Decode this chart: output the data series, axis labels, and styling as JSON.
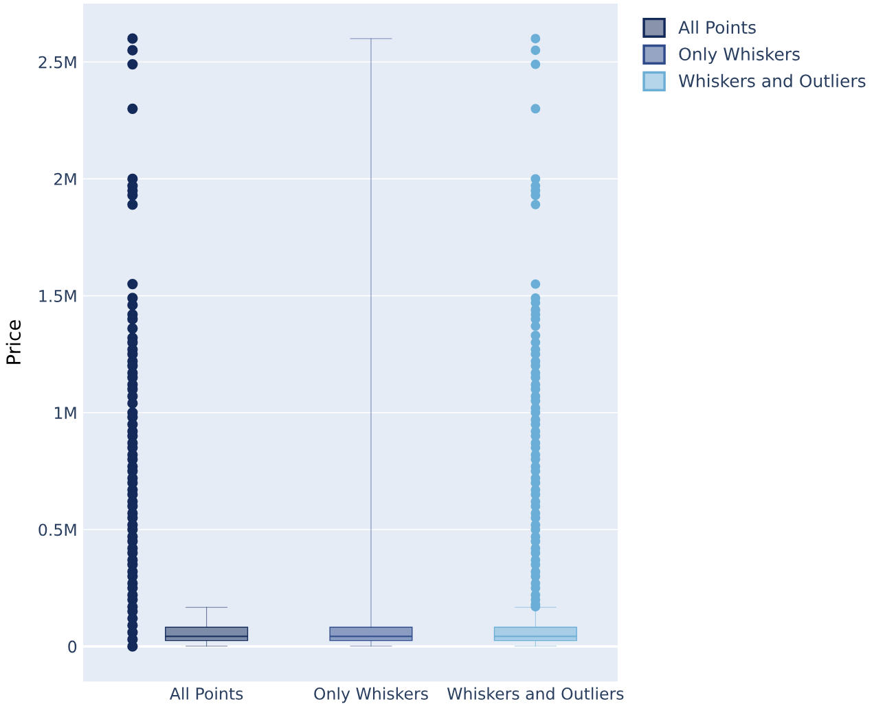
{
  "chart_data": {
    "type": "box",
    "ylabel": "Price",
    "categories": [
      "All Points",
      "Only Whiskers",
      "Whiskers and Outliers"
    ],
    "series": [
      {
        "name": "All Points",
        "color": "#132a5a",
        "boxes": [
          {
            "low": 1000,
            "q1": 25000,
            "median": 43000,
            "q3": 82000,
            "high": 167000
          },
          null,
          null
        ]
      },
      {
        "name": "Only Whiskers",
        "color": "#2f4b8c",
        "boxes": [
          null,
          {
            "low": 1000,
            "q1": 25000,
            "median": 43000,
            "q3": 82000,
            "high": 2600000
          },
          null
        ]
      },
      {
        "name": "Whiskers and Outliers",
        "color": "#6baed6",
        "boxes": [
          null,
          null,
          {
            "low": 1000,
            "q1": 25000,
            "median": 43000,
            "q3": 82000,
            "high": 167000,
            "outliers": [
              2600000,
              2550000,
              2490000,
              2300000,
              2000000,
              1970000,
              1950000,
              1930000,
              1890000,
              1550000,
              1490000,
              1470000,
              1440000,
              1420000,
              1400000,
              1370000,
              1330000,
              1300000,
              1270000,
              1250000,
              1220000,
              1200000,
              1170000,
              1150000,
              1120000,
              1100000,
              1070000,
              1050000,
              1020000,
              1000000,
              970000,
              950000,
              920000,
              900000,
              870000,
              850000,
              820000,
              800000,
              770000,
              750000,
              720000,
              700000,
              670000,
              650000,
              620000,
              600000,
              570000,
              550000,
              520000,
              500000,
              470000,
              450000,
              420000,
              400000,
              370000,
              350000,
              320000,
              300000,
              270000,
              250000,
              220000,
              200000,
              180000,
              170000
            ]
          }
        ]
      },
      {
        "type": "scatter",
        "color": "#132a5a",
        "x": [
          "All Points",
          "All Points",
          "All Points",
          "All Points",
          "All Points",
          "All Points",
          "All Points",
          "All Points",
          "All Points",
          "All Points",
          "All Points",
          "All Points",
          "All Points",
          "All Points",
          "All Points",
          "All Points",
          "All Points",
          "All Points",
          "All Points",
          "All Points",
          "All Points",
          "All Points",
          "All Points",
          "All Points",
          "All Points",
          "All Points",
          "All Points",
          "All Points",
          "All Points",
          "All Points",
          "All Points",
          "All Points",
          "All Points",
          "All Points",
          "All Points",
          "All Points",
          "All Points",
          "All Points",
          "All Points",
          "All Points",
          "All Points",
          "All Points",
          "All Points",
          "All Points",
          "All Points",
          "All Points",
          "All Points",
          "All Points",
          "All Points",
          "All Points",
          "All Points",
          "All Points",
          "All Points",
          "All Points",
          "All Points",
          "All Points",
          "All Points",
          "All Points",
          "All Points",
          "All Points",
          "All Points",
          "All Points",
          "All Points",
          "All Points",
          "All Points",
          "All Points",
          "All Points"
        ],
        "values": [
          2600000,
          2550000,
          2490000,
          2300000,
          2000000,
          1970000,
          1950000,
          1930000,
          1890000,
          1550000,
          1490000,
          1460000,
          1420000,
          1400000,
          1360000,
          1320000,
          1300000,
          1270000,
          1250000,
          1220000,
          1200000,
          1170000,
          1150000,
          1120000,
          1100000,
          1070000,
          1040000,
          1000000,
          980000,
          950000,
          920000,
          900000,
          870000,
          850000,
          820000,
          800000,
          770000,
          750000,
          720000,
          700000,
          670000,
          650000,
          620000,
          600000,
          570000,
          550000,
          520000,
          500000,
          470000,
          450000,
          420000,
          400000,
          370000,
          350000,
          320000,
          300000,
          270000,
          250000,
          220000,
          200000,
          170000,
          150000,
          120000,
          90000,
          60000,
          30000,
          0
        ]
      }
    ],
    "ylim": [
      -150000,
      2750000
    ],
    "yticks": [
      0,
      {
        "value": 500000,
        "label": "0.5M"
      },
      {
        "value": 1000000,
        "label": "1M"
      },
      {
        "value": 1500000,
        "label": "1.5M"
      },
      {
        "value": 2000000,
        "label": "2M"
      },
      {
        "value": 2500000,
        "label": "2.5M"
      }
    ],
    "grid": "y",
    "legend": "top right"
  }
}
